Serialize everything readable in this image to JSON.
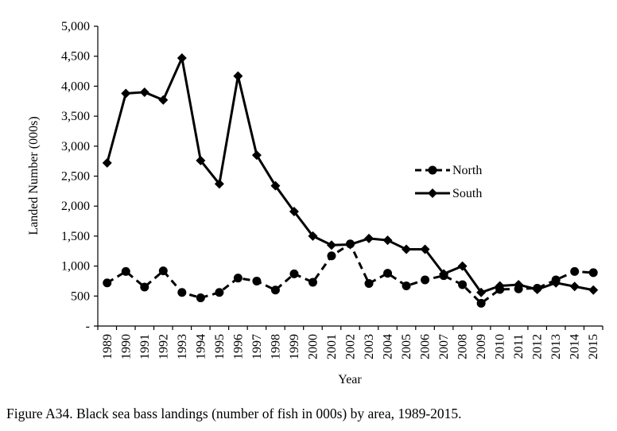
{
  "caption": "Figure A34. Black sea bass landings (number of fish in 000s) by area, 1989-2015.",
  "chart_data": {
    "type": "line",
    "title": "",
    "xlabel": "Year",
    "ylabel": "Landed Number (000s)",
    "ylim": [
      0,
      5000
    ],
    "y_ticks": [
      {
        "value": 0,
        "label": "-"
      },
      {
        "value": 500,
        "label": "500"
      },
      {
        "value": 1000,
        "label": "1,000"
      },
      {
        "value": 1500,
        "label": "1,500"
      },
      {
        "value": 2000,
        "label": "2,000"
      },
      {
        "value": 2500,
        "label": "2,500"
      },
      {
        "value": 3000,
        "label": "3,000"
      },
      {
        "value": 3500,
        "label": "3,500"
      },
      {
        "value": 4000,
        "label": "4,000"
      },
      {
        "value": 4500,
        "label": "4,500"
      },
      {
        "value": 5000,
        "label": "5,000"
      }
    ],
    "categories": [
      "1989",
      "1990",
      "1991",
      "1992",
      "1993",
      "1994",
      "1995",
      "1996",
      "1997",
      "1998",
      "1999",
      "2000",
      "2001",
      "2002",
      "2003",
      "2004",
      "2005",
      "2006",
      "2007",
      "2008",
      "2009",
      "2010",
      "2011",
      "2012",
      "2013",
      "2014",
      "2015"
    ],
    "grid": false,
    "legend_position": "right-middle",
    "series": [
      {
        "name": "North",
        "style": "dashed",
        "marker": "circle",
        "color": "#000000",
        "values": [
          720,
          910,
          650,
          920,
          560,
          470,
          560,
          800,
          750,
          600,
          870,
          730,
          1170,
          1370,
          710,
          880,
          670,
          770,
          840,
          690,
          380,
          610,
          620,
          630,
          770,
          910,
          890
        ]
      },
      {
        "name": "South",
        "style": "solid",
        "marker": "diamond",
        "color": "#000000",
        "values": [
          2720,
          3880,
          3900,
          3770,
          4470,
          2760,
          2370,
          4170,
          2850,
          2340,
          1910,
          1500,
          1350,
          1360,
          1460,
          1430,
          1280,
          1280,
          870,
          1000,
          560,
          670,
          690,
          610,
          720,
          660,
          600
        ]
      }
    ]
  }
}
